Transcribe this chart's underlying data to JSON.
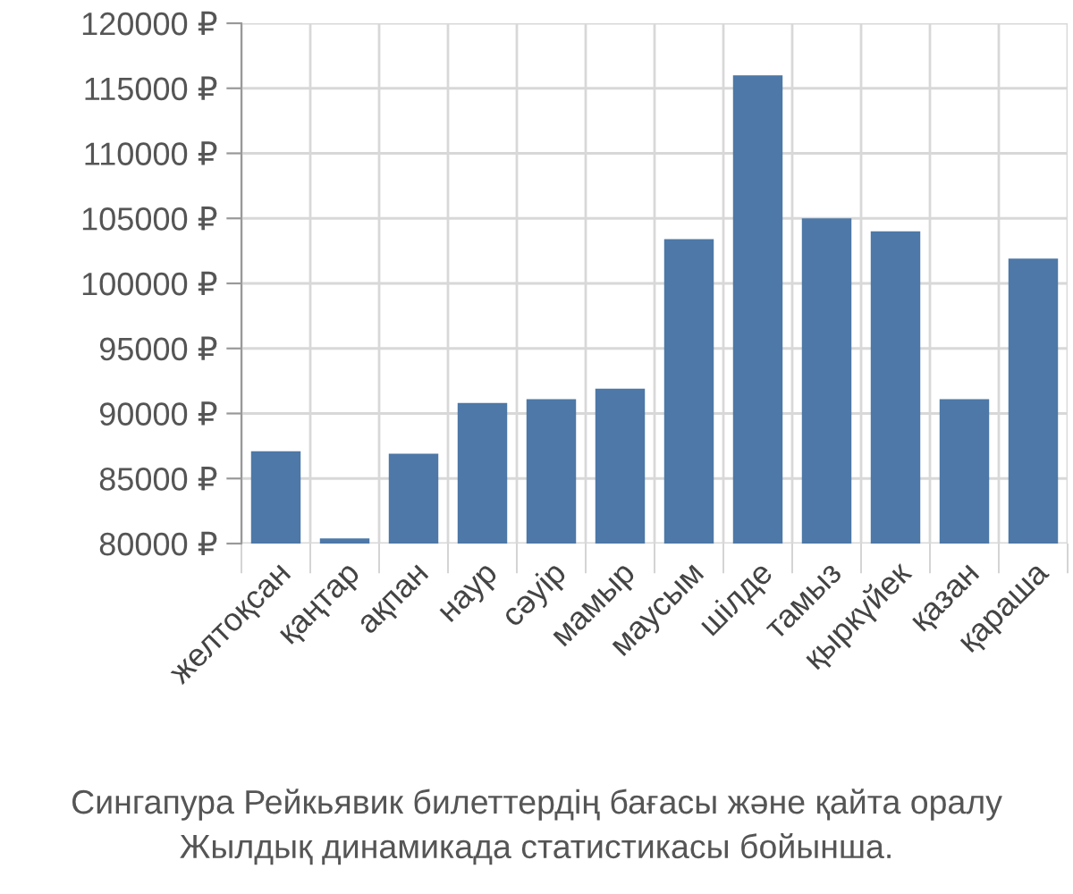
{
  "chart_data": {
    "type": "bar",
    "categories": [
      "желтоқсан",
      "қаңтар",
      "ақпан",
      "наур",
      "сәуір",
      "мамыр",
      "маусым",
      "шілде",
      "тамыз",
      "қыркүйек",
      "қазан",
      "қараша"
    ],
    "values": [
      87100,
      80400,
      86900,
      90800,
      91100,
      91900,
      103400,
      116000,
      105000,
      104000,
      91100,
      101900
    ],
    "color": "#4d78a7",
    "ylim": [
      80000,
      120000
    ],
    "yticks": [
      {
        "value": 80000,
        "label": "80000 ₽"
      },
      {
        "value": 85000,
        "label": "85000 ₽"
      },
      {
        "value": 90000,
        "label": "90000 ₽"
      },
      {
        "value": 95000,
        "label": "95000 ₽"
      },
      {
        "value": 100000,
        "label": "100000 ₽"
      },
      {
        "value": 105000,
        "label": "105000 ₽"
      },
      {
        "value": 110000,
        "label": "110000 ₽"
      },
      {
        "value": 115000,
        "label": "115000 ₽"
      },
      {
        "value": 120000,
        "label": "120000 ₽"
      }
    ],
    "grid": true,
    "annotations": [
      "Сингапура Рейкьявик билеттердің бағасы және қайта оралу",
      "Жылдық динамикада статистикасы бойынша."
    ]
  }
}
